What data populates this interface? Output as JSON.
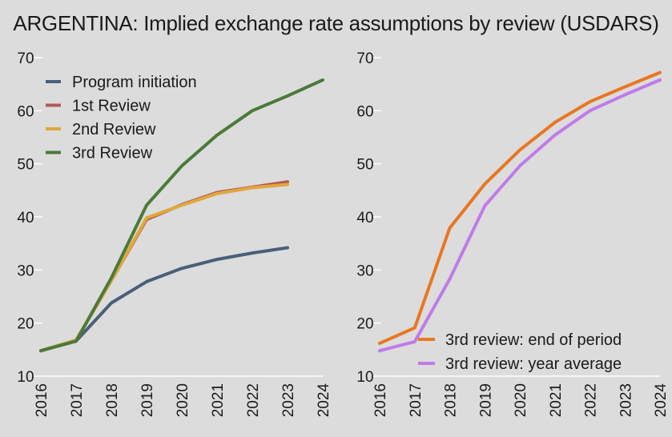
{
  "title": "ARGENTINA: Implied exchange rate assumptions by review (USDARS)",
  "chart_data": [
    {
      "type": "line",
      "x": [
        "2016",
        "2017",
        "2018",
        "2019",
        "2020",
        "2021",
        "2022",
        "2023",
        "2024"
      ],
      "ylim": [
        10,
        70
      ],
      "yticks": [
        10,
        20,
        30,
        40,
        50,
        60,
        70
      ],
      "legend_position": "top-left",
      "series": [
        {
          "name": "Program initiation",
          "color": "#4a5f78",
          "values": [
            14.8,
            16.6,
            23.8,
            27.8,
            30.3,
            32.0,
            33.2,
            34.2,
            null
          ]
        },
        {
          "name": "1st Review",
          "color": "#b5585a",
          "values": [
            14.8,
            16.8,
            28.0,
            39.5,
            42.3,
            44.6,
            45.6,
            46.6,
            null
          ]
        },
        {
          "name": "2nd Review",
          "color": "#e0a83a",
          "values": [
            14.8,
            16.8,
            28.0,
            39.8,
            42.2,
            44.4,
            45.5,
            46.1,
            null
          ]
        },
        {
          "name": "3rd Review",
          "color": "#4a7a38",
          "values": [
            14.8,
            16.6,
            28.5,
            42.2,
            49.6,
            55.4,
            60.0,
            62.8,
            65.8
          ]
        }
      ]
    },
    {
      "type": "line",
      "x": [
        "2016",
        "2017",
        "2018",
        "2019",
        "2020",
        "2021",
        "2022",
        "2023",
        "2024"
      ],
      "ylim": [
        10,
        70
      ],
      "yticks": [
        10,
        20,
        30,
        40,
        50,
        60,
        70
      ],
      "legend_position": "bottom-right",
      "series": [
        {
          "name": "3rd review: end of period",
          "color": "#e87722",
          "values": [
            16.2,
            19.1,
            37.9,
            46.2,
            52.6,
            57.8,
            61.7,
            64.5,
            67.2
          ]
        },
        {
          "name": "3rd review: year average",
          "color": "#c07be8",
          "values": [
            14.8,
            16.5,
            28.3,
            42.1,
            49.6,
            55.4,
            60.0,
            63.0,
            65.8
          ]
        }
      ]
    }
  ]
}
